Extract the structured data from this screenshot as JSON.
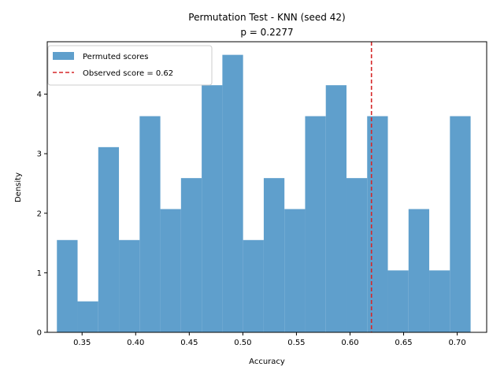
{
  "chart_data": {
    "type": "bar",
    "title": "Permutation Test - KNN (seed 42)",
    "subtitle": "p = 0.2277",
    "xlabel": "Accuracy",
    "ylabel": "Density",
    "xlim": [
      0.3175,
      0.7275
    ],
    "ylim": [
      0,
      4.88
    ],
    "xticks": [
      "0.35",
      "0.40",
      "0.45",
      "0.50",
      "0.55",
      "0.60",
      "0.65",
      "0.70"
    ],
    "yticks": [
      "0",
      "1",
      "2",
      "3",
      "4"
    ],
    "bin_edges": [
      0.3265,
      0.3458,
      0.3651,
      0.3844,
      0.4037,
      0.423,
      0.4423,
      0.4616,
      0.4809,
      0.5002,
      0.5195,
      0.5388,
      0.5581,
      0.5774,
      0.5967,
      0.616,
      0.6353,
      0.6546,
      0.6739,
      0.6932,
      0.7125
    ],
    "series": [
      {
        "name": "Permuted scores",
        "color": "#5f9fcc",
        "values": [
          1.55,
          0.52,
          3.11,
          1.55,
          3.63,
          2.07,
          2.59,
          4.15,
          4.66,
          1.55,
          2.59,
          2.07,
          3.63,
          4.15,
          2.59,
          3.63,
          1.04,
          2.07,
          1.04,
          3.63
        ]
      }
    ],
    "observed_line": {
      "label": "Observed score = 0.62",
      "x": 0.62,
      "color": "#d62728",
      "style": "dashed"
    },
    "legend_position": "top-left",
    "grid": false
  }
}
